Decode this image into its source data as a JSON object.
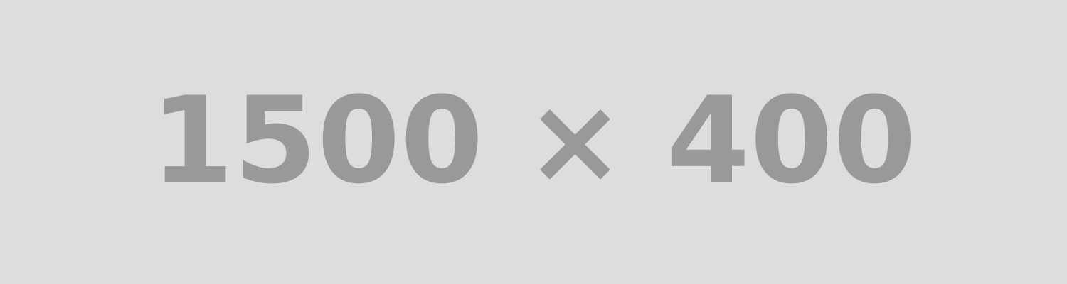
{
  "placeholder": {
    "label": "1500 × 400",
    "background_color": "#dddddd",
    "text_color": "#999999"
  }
}
